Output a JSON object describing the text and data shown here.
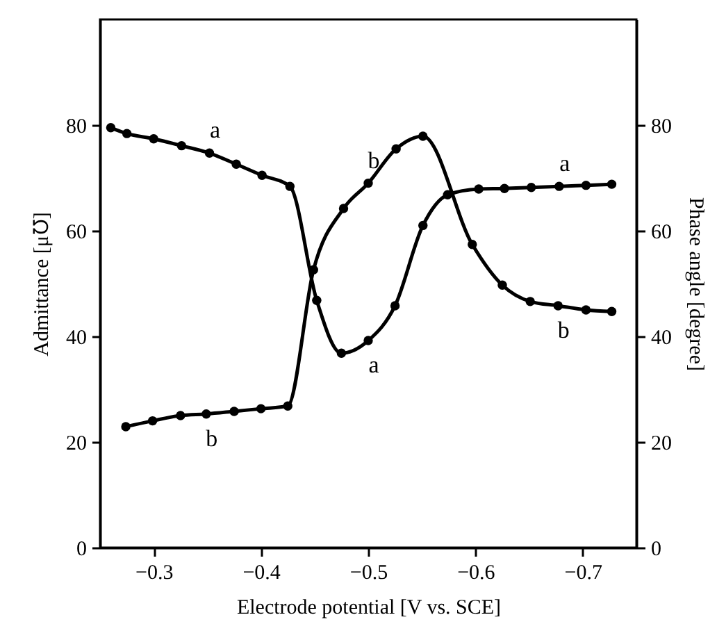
{
  "chart_data": {
    "type": "line",
    "xlabel": "Electrode potential [V vs. SCE]",
    "ylabel": "Admittance [μ℧]",
    "y2label": "Phase angle [degree]",
    "xlim": [
      -0.25,
      -0.75
    ],
    "xticks": [
      -0.3,
      -0.4,
      -0.5,
      -0.6,
      -0.7
    ],
    "ylim": [
      0,
      100
    ],
    "yticks": [
      0,
      20,
      40,
      60,
      80
    ],
    "y2lim": [
      0,
      100
    ],
    "y2ticks": [
      0,
      20,
      40,
      60,
      80
    ],
    "grid": false,
    "marker": "circle",
    "line_style": "solid",
    "series": [
      {
        "color": "#000000",
        "x": [
          -0.26,
          -0.275,
          -0.3,
          -0.326,
          -0.352,
          -0.377,
          -0.401,
          -0.427,
          -0.452,
          -0.475,
          -0.5,
          -0.525,
          -0.551,
          -0.574,
          -0.603,
          -0.627,
          -0.652,
          -0.678,
          -0.703,
          -0.727
        ],
        "values": [
          79.5,
          78.4,
          77.4,
          76.1,
          74.7,
          72.6,
          70.5,
          68.4,
          46.8,
          36.8,
          39.2,
          45.8,
          61,
          66.8,
          67.9,
          68,
          68.2,
          68.4,
          68.6,
          68.8
        ]
      },
      {
        "color": "#000000",
        "axis": "y2",
        "x": [
          -0.274,
          -0.299,
          -0.325,
          -0.349,
          -0.375,
          -0.4,
          -0.425,
          -0.449,
          -0.477,
          -0.5,
          -0.526,
          -0.551,
          -0.597,
          -0.625,
          -0.651,
          -0.677,
          -0.703,
          -0.727
        ],
        "values": [
          22.9,
          24,
          25,
          25.3,
          25.8,
          26.3,
          26.8,
          52.6,
          64.2,
          69,
          75.5,
          77.9,
          57.4,
          49.7,
          46.6,
          45.8,
          45,
          44.7
        ]
      }
    ],
    "annotations": [
      {
        "text": "a",
        "x": -0.352,
        "y": 74.7
      },
      {
        "text": "a",
        "x": -0.5,
        "y": 39.2
      },
      {
        "text": "a",
        "x": -0.678,
        "y": 68.4
      },
      {
        "text": "b",
        "x": -0.349,
        "y": 25.3
      },
      {
        "text": "b",
        "x": -0.5,
        "y": 69
      },
      {
        "text": "b",
        "x": -0.677,
        "y": 45.8
      }
    ]
  }
}
